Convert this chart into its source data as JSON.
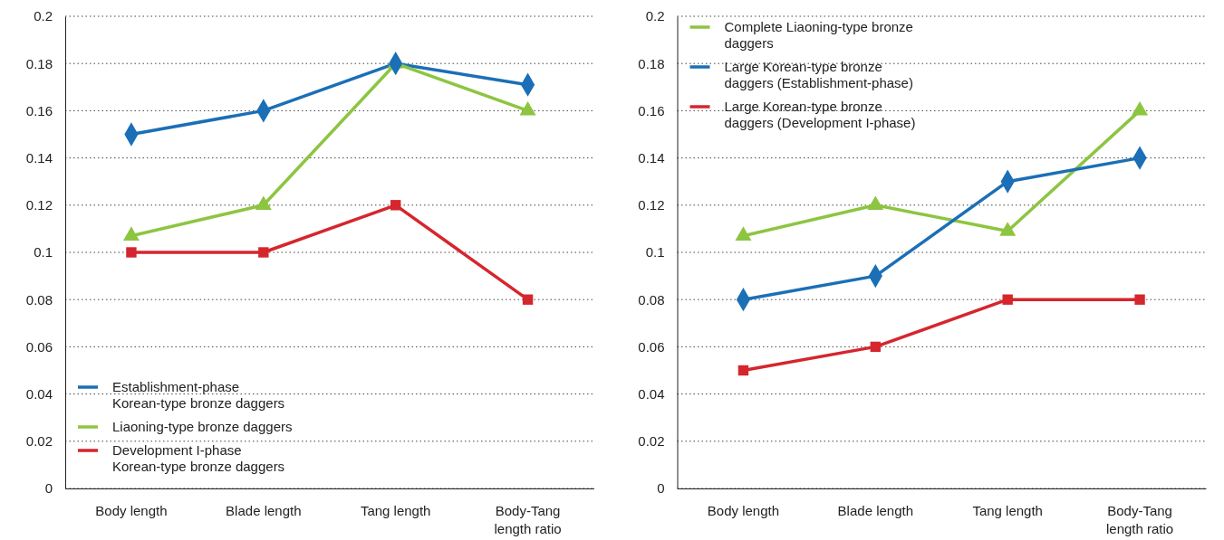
{
  "chart_data": [
    {
      "type": "line",
      "categories": [
        "Body length",
        "Blade length",
        "Tang length",
        "Body-Tang length ratio"
      ],
      "series": [
        {
          "name": "Establishment-phase Korean-type bronze daggers",
          "color": "#1b6fb6",
          "marker": "diamond",
          "values": [
            0.15,
            0.16,
            0.18,
            0.171
          ]
        },
        {
          "name": "Liaoning-type bronze daggers",
          "color": "#8dc541",
          "marker": "triangle",
          "values": [
            0.107,
            0.12,
            0.18,
            0.16
          ]
        },
        {
          "name": "Development I-phase Korean-type bronze daggers",
          "color": "#d5262d",
          "marker": "square",
          "values": [
            0.1,
            0.1,
            0.12,
            0.08
          ]
        }
      ],
      "ylim": [
        0,
        0.2
      ],
      "yticks": [
        0,
        0.02,
        0.04,
        0.06,
        0.08,
        0.1,
        0.12,
        0.14,
        0.16,
        0.18,
        0.2
      ],
      "grid": "y",
      "legend": "bottom left"
    },
    {
      "type": "line",
      "categories": [
        "Body length",
        "Blade length",
        "Tang length",
        "Body-Tang length ratio"
      ],
      "series": [
        {
          "name": "Complete Liaoning-type bronze daggers",
          "color": "#8dc541",
          "marker": "triangle",
          "values": [
            0.107,
            0.12,
            0.109,
            0.16
          ]
        },
        {
          "name": "Large Korean-type bronze daggers (Establishment-phase)",
          "color": "#1b6fb6",
          "marker": "diamond",
          "values": [
            0.08,
            0.09,
            0.13,
            0.14
          ]
        },
        {
          "name": "Large Korean-type bronze daggers (Development I-phase)",
          "color": "#d5262d",
          "marker": "square",
          "values": [
            0.05,
            0.06,
            0.08,
            0.08
          ]
        }
      ],
      "ylim": [
        0,
        0.2
      ],
      "yticks": [
        0,
        0.02,
        0.04,
        0.06,
        0.08,
        0.1,
        0.12,
        0.14,
        0.16,
        0.18,
        0.2
      ],
      "grid": "y",
      "legend": "top left"
    }
  ]
}
